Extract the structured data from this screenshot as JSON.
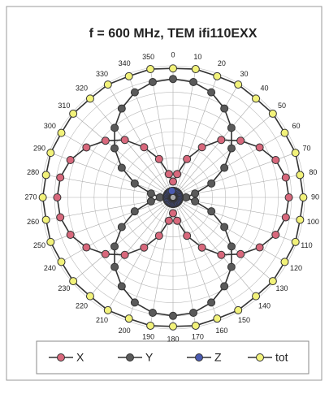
{
  "chart_data": {
    "type": "polar",
    "title": "f = 600 MHz, TEM ifi110EXX",
    "angles": [
      0,
      10,
      20,
      30,
      40,
      50,
      60,
      70,
      80,
      90,
      100,
      110,
      120,
      130,
      140,
      150,
      160,
      170,
      180,
      190,
      200,
      210,
      220,
      230,
      240,
      250,
      260,
      270,
      280,
      290,
      300,
      310,
      320,
      330,
      340,
      350
    ],
    "rlim": [
      0,
      1
    ],
    "rticks": [
      0.1,
      0.2,
      0.3,
      0.4,
      0.5,
      0.6,
      0.7,
      0.8,
      0.9,
      1.0
    ],
    "grid": true,
    "legend": "bottom",
    "series": [
      {
        "name": "X",
        "color": "#d8687c",
        "values": [
          0.12,
          0.18,
          0.31,
          0.44,
          0.57,
          0.67,
          0.76,
          0.83,
          0.87,
          0.88,
          0.87,
          0.83,
          0.76,
          0.67,
          0.57,
          0.44,
          0.31,
          0.18,
          0.12,
          0.18,
          0.31,
          0.44,
          0.57,
          0.67,
          0.76,
          0.83,
          0.87,
          0.88,
          0.87,
          0.83,
          0.76,
          0.67,
          0.57,
          0.44,
          0.31,
          0.18
        ]
      },
      {
        "name": "Y",
        "color": "#5a5a5a",
        "values": [
          0.9,
          0.89,
          0.85,
          0.78,
          0.69,
          0.58,
          0.45,
          0.31,
          0.17,
          0.1,
          0.17,
          0.31,
          0.45,
          0.58,
          0.69,
          0.78,
          0.85,
          0.89,
          0.9,
          0.89,
          0.85,
          0.78,
          0.69,
          0.58,
          0.45,
          0.31,
          0.17,
          0.1,
          0.17,
          0.31,
          0.45,
          0.58,
          0.69,
          0.78,
          0.85,
          0.89
        ]
      },
      {
        "name": "Z",
        "color": "#4a5ab0",
        "values": [
          0.05,
          0.05,
          0.05,
          0.05,
          0.05,
          0.05,
          0.05,
          0.05,
          0.05,
          0.05,
          0.05,
          0.05,
          0.05,
          0.05,
          0.05,
          0.05,
          0.05,
          0.05,
          0.05,
          0.05,
          0.05,
          0.05,
          0.05,
          0.05,
          0.05,
          0.05,
          0.05,
          0.05,
          0.05,
          0.05,
          0.05,
          0.05,
          0.05,
          0.05,
          0.05,
          0.05
        ]
      },
      {
        "name": "tot",
        "color": "#f2f27a",
        "values": [
          0.98,
          0.99,
          0.98,
          0.99,
          0.98,
          0.99,
          0.98,
          0.99,
          0.98,
          0.99,
          0.98,
          0.99,
          0.98,
          0.99,
          0.98,
          0.99,
          0.98,
          0.99,
          0.98,
          0.99,
          0.98,
          0.99,
          0.98,
          0.99,
          0.98,
          0.99,
          0.98,
          0.99,
          0.98,
          0.99,
          0.98,
          0.99,
          0.98,
          0.99,
          0.98,
          0.99
        ]
      }
    ]
  }
}
